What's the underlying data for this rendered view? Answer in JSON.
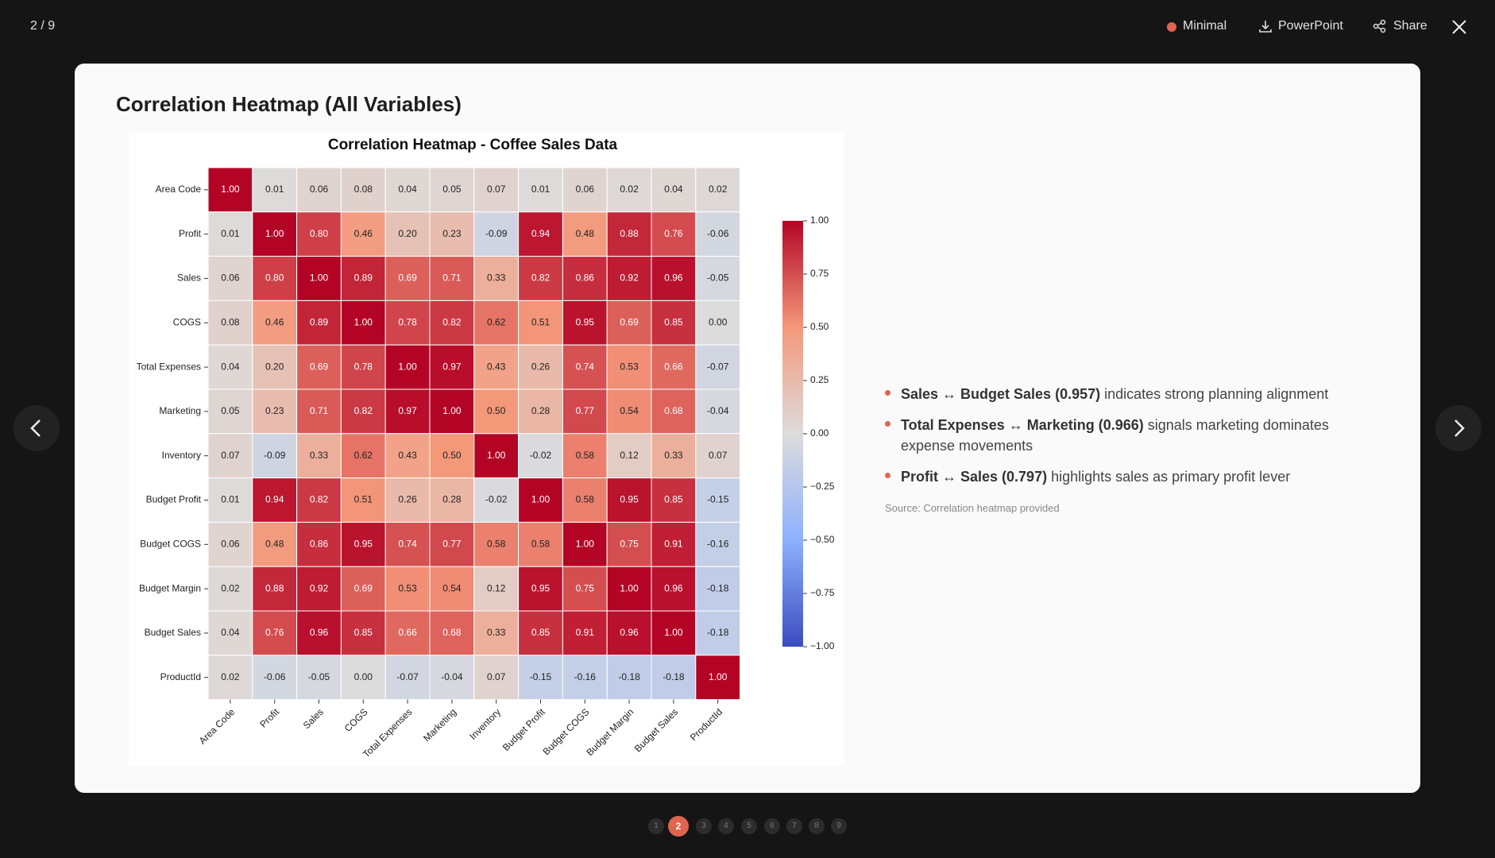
{
  "toolbar": {
    "counter": "2 / 9",
    "minimal": "Minimal",
    "powerpoint": "PowerPoint",
    "share": "Share"
  },
  "slide": {
    "title": "Correlation Heatmap (All Variables)",
    "bullets": [
      {
        "bold": "Sales ↔ Budget Sales (0.957)",
        "text": " indicates strong planning alignment"
      },
      {
        "bold": "Total Expenses ↔ Marketing (0.966)",
        "text": " signals marketing dominates expense movements"
      },
      {
        "bold": "Profit ↔ Sales (0.797)",
        "text": " highlights sales as primary profit lever"
      }
    ],
    "source": "Source: Correlation heatmap provided"
  },
  "pagination": [
    {
      "label": "1",
      "active": false
    },
    {
      "label": "2",
      "active": true
    },
    {
      "label": "3",
      "active": false
    },
    {
      "label": "4",
      "active": false
    },
    {
      "label": "5",
      "active": false
    },
    {
      "label": "6",
      "active": false
    },
    {
      "label": "7",
      "active": false
    },
    {
      "label": "8",
      "active": false
    },
    {
      "label": "9",
      "active": false
    }
  ],
  "chart_data": {
    "type": "heatmap",
    "title": "Correlation Heatmap - Coffee Sales Data",
    "colormap": "coolwarm",
    "x": [
      "Area Code",
      "Profit",
      "Sales",
      "COGS",
      "Total Expenses",
      "Marketing",
      "Inventory",
      "Budget Profit",
      "Budget COGS",
      "Budget Margin",
      "Budget Sales",
      "ProductId"
    ],
    "y": [
      "Area Code",
      "Profit",
      "Sales",
      "COGS",
      "Total Expenses",
      "Marketing",
      "Inventory",
      "Budget Profit",
      "Budget COGS",
      "Budget Margin",
      "Budget Sales",
      "ProductId"
    ],
    "values": [
      [
        1,
        0.01,
        0.06,
        0.08,
        0.04,
        0.05,
        0.07,
        0.01,
        0.06,
        0.02,
        0.04,
        0.02
      ],
      [
        0.01,
        1,
        0.8,
        0.46,
        0.2,
        0.23,
        -0.09,
        0.94,
        0.48,
        0.88,
        0.76,
        -0.06
      ],
      [
        0.06,
        0.8,
        1,
        0.89,
        0.69,
        0.71,
        0.33,
        0.82,
        0.86,
        0.92,
        0.96,
        -0.05
      ],
      [
        0.08,
        0.46,
        0.89,
        1,
        0.78,
        0.82,
        0.62,
        0.51,
        0.95,
        0.69,
        0.85,
        0
      ],
      [
        0.04,
        0.2,
        0.69,
        0.78,
        1,
        0.97,
        0.43,
        0.26,
        0.74,
        0.53,
        0.66,
        -0.07
      ],
      [
        0.05,
        0.23,
        0.71,
        0.82,
        0.97,
        1,
        0.5,
        0.28,
        0.77,
        0.54,
        0.68,
        -0.04
      ],
      [
        0.07,
        -0.09,
        0.33,
        0.62,
        0.43,
        0.5,
        1,
        -0.02,
        0.58,
        0.12,
        0.33,
        0.07
      ],
      [
        0.01,
        0.94,
        0.82,
        0.51,
        0.26,
        0.28,
        -0.02,
        1,
        0.58,
        0.95,
        0.85,
        -0.15
      ],
      [
        0.06,
        0.48,
        0.86,
        0.95,
        0.74,
        0.77,
        0.58,
        0.58,
        1,
        0.75,
        0.91,
        -0.16
      ],
      [
        0.02,
        0.88,
        0.92,
        0.69,
        0.53,
        0.54,
        0.12,
        0.95,
        0.75,
        1,
        0.96,
        -0.18
      ],
      [
        0.04,
        0.76,
        0.96,
        0.85,
        0.66,
        0.68,
        0.33,
        0.85,
        0.91,
        0.96,
        1,
        -0.18
      ],
      [
        0.02,
        -0.06,
        -0.05,
        0,
        -0.07,
        -0.04,
        0.07,
        -0.15,
        -0.16,
        -0.18,
        -0.18,
        1
      ]
    ],
    "value_labels": [
      [
        "1.00",
        "0.01",
        "0.06",
        "0.08",
        "0.04",
        "0.05",
        "0.07",
        "0.01",
        "0.06",
        "0.02",
        "0.04",
        "0.02"
      ],
      [
        "0.01",
        "1.00",
        "0.80",
        "0.46",
        "0.20",
        "0.23",
        "-0.09",
        "0.94",
        "0.48",
        "0.88",
        "0.76",
        "-0.06"
      ],
      [
        "0.06",
        "0.80",
        "1.00",
        "0.89",
        "0.69",
        "0.71",
        "0.33",
        "0.82",
        "0.86",
        "0.92",
        "0.96",
        "-0.05"
      ],
      [
        "0.08",
        "0.46",
        "0.89",
        "1.00",
        "0.78",
        "0.82",
        "0.62",
        "0.51",
        "0.95",
        "0.69",
        "0.85",
        "0.00"
      ],
      [
        "0.04",
        "0.20",
        "0.69",
        "0.78",
        "1.00",
        "0.97",
        "0.43",
        "0.26",
        "0.74",
        "0.53",
        "0.66",
        "-0.07"
      ],
      [
        "0.05",
        "0.23",
        "0.71",
        "0.82",
        "0.97",
        "1.00",
        "0.50",
        "0.28",
        "0.77",
        "0.54",
        "0.68",
        "-0.04"
      ],
      [
        "0.07",
        "-0.09",
        "0.33",
        "0.62",
        "0.43",
        "0.50",
        "1.00",
        "-0.02",
        "0.58",
        "0.12",
        "0.33",
        "0.07"
      ],
      [
        "0.01",
        "0.94",
        "0.82",
        "0.51",
        "0.26",
        "0.28",
        "-0.02",
        "1.00",
        "0.58",
        "0.95",
        "0.85",
        "-0.15"
      ],
      [
        "0.06",
        "0.48",
        "0.86",
        "0.95",
        "0.74",
        "0.77",
        "0.58",
        "0.58",
        "1.00",
        "0.75",
        "0.91",
        "-0.16"
      ],
      [
        "0.02",
        "0.88",
        "0.92",
        "0.69",
        "0.53",
        "0.54",
        "0.12",
        "0.95",
        "0.75",
        "1.00",
        "0.96",
        "-0.18"
      ],
      [
        "0.04",
        "0.76",
        "0.96",
        "0.85",
        "0.66",
        "0.68",
        "0.33",
        "0.85",
        "0.91",
        "0.96",
        "1.00",
        "-0.18"
      ],
      [
        "0.02",
        "-0.06",
        "-0.05",
        "0.00",
        "-0.07",
        "-0.04",
        "0.07",
        "-0.15",
        "-0.16",
        "-0.18",
        "-0.18",
        "1.00"
      ]
    ],
    "clim": [
      -1,
      1
    ],
    "cticks": [
      {
        "value": 1,
        "label": "1.00"
      },
      {
        "value": 0.75,
        "label": "0.75"
      },
      {
        "value": 0.5,
        "label": "0.50"
      },
      {
        "value": 0.25,
        "label": "0.25"
      },
      {
        "value": 0,
        "label": "0.00"
      },
      {
        "value": -0.25,
        "label": "−0.25"
      },
      {
        "value": -0.5,
        "label": "−0.50"
      },
      {
        "value": -0.75,
        "label": "−0.75"
      },
      {
        "value": -1,
        "label": "−1.00"
      }
    ]
  }
}
